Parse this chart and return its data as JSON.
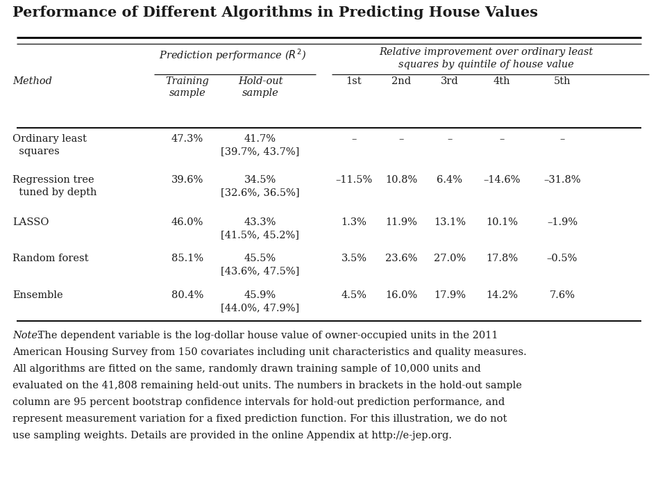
{
  "title": "Performance of Different Algorithms in Predicting House Values",
  "bg_color": "#ffffff",
  "text_color": "#1a1a1a",
  "rows": [
    {
      "method_line1": "Ordinary least",
      "method_line2": "  squares",
      "training": "47.3%",
      "holdout_line1": "41.7%",
      "holdout_line2": "[39.7%, 43.7%]",
      "q1": "–",
      "q2": "–",
      "q3": "–",
      "q4": "–",
      "q5": "–"
    },
    {
      "method_line1": "Regression tree",
      "method_line2": "  tuned by depth",
      "training": "39.6%",
      "holdout_line1": "34.5%",
      "holdout_line2": "[32.6%, 36.5%]",
      "q1": "–11.5%",
      "q2": "10.8%",
      "q3": "6.4%",
      "q4": "–14.6%",
      "q5": "–31.8%"
    },
    {
      "method_line1": "LASSO",
      "method_line2": "",
      "training": "46.0%",
      "holdout_line1": "43.3%",
      "holdout_line2": "[41.5%, 45.2%]",
      "q1": "1.3%",
      "q2": "11.9%",
      "q3": "13.1%",
      "q4": "10.1%",
      "q5": "–1.9%"
    },
    {
      "method_line1": "Random forest",
      "method_line2": "",
      "training": "85.1%",
      "holdout_line1": "45.5%",
      "holdout_line2": "[43.6%, 47.5%]",
      "q1": "3.5%",
      "q2": "23.6%",
      "q3": "27.0%",
      "q4": "17.8%",
      "q5": "–0.5%"
    },
    {
      "method_line1": "Ensemble",
      "method_line2": "",
      "training": "80.4%",
      "holdout_line1": "45.9%",
      "holdout_line2": "[44.0%, 47.9%]",
      "q1": "4.5%",
      "q2": "16.0%",
      "q3": "17.9%",
      "q4": "14.2%",
      "q5": "7.6%"
    }
  ],
  "note_italic": "Note:",
  "note_rest": " The dependent variable is the log-dollar house value of owner-occupied units in the 2011 American Housing Survey from 150 covariates including unit characteristics and quality measures. All algorithms are fitted on the same, randomly drawn training sample of 10,000 units and evaluated on the 41,808 remaining held-out units. The numbers in brackets in the hold-out sample column are 95 percent bootstrap confidence intervals for hold-out prediction performance, and represent measurement variation for a fixed prediction function. For this illustration, we do not use sampling weights. Details are provided in the online Appendix at http://e-jep.org."
}
